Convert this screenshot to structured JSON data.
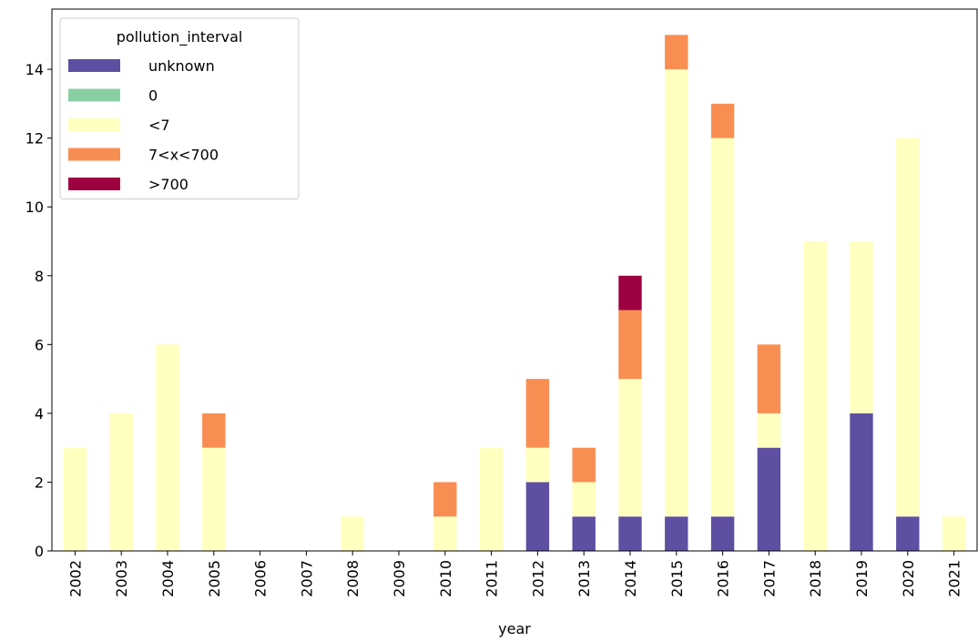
{
  "chart_data": {
    "type": "stacked_bar",
    "x_label": "year",
    "legend_title": "pollution_interval",
    "legend_position": "upper left",
    "categories": [
      "2002",
      "2003",
      "2004",
      "2005",
      "2006",
      "2007",
      "2008",
      "2009",
      "2010",
      "2011",
      "2012",
      "2013",
      "2014",
      "2015",
      "2016",
      "2017",
      "2018",
      "2019",
      "2020",
      "2021"
    ],
    "series": [
      {
        "name": "unknown",
        "color": "#5e4fa2",
        "values": [
          0,
          0,
          0,
          0,
          0,
          0,
          0,
          0,
          0,
          0,
          2,
          1,
          1,
          1,
          1,
          3,
          0,
          4,
          1,
          0
        ]
      },
      {
        "name": "0",
        "color": "#88d0a4",
        "values": [
          0,
          0,
          0,
          0,
          0,
          0,
          0,
          0,
          0,
          0,
          0,
          0,
          0,
          0,
          0,
          0,
          0,
          0,
          0,
          0
        ]
      },
      {
        "name": "<7",
        "color": "#ffffbf",
        "values": [
          3,
          4,
          6,
          3,
          0,
          0,
          1,
          0,
          1,
          3,
          1,
          1,
          4,
          13,
          11,
          1,
          9,
          5,
          11,
          1
        ]
      },
      {
        "name": "7<x<700",
        "color": "#f98e52",
        "values": [
          0,
          0,
          0,
          1,
          0,
          0,
          0,
          0,
          1,
          0,
          2,
          1,
          2,
          1,
          1,
          2,
          0,
          0,
          0,
          0
        ]
      },
      {
        "name": ">700",
        "color": "#9e0142",
        "values": [
          0,
          0,
          0,
          0,
          0,
          0,
          0,
          0,
          0,
          0,
          0,
          0,
          1,
          0,
          0,
          0,
          0,
          0,
          0,
          0
        ]
      }
    ],
    "ylim": [
      0,
      15.75
    ],
    "yticks": [
      0,
      2,
      4,
      6,
      8,
      10,
      12,
      14
    ]
  }
}
